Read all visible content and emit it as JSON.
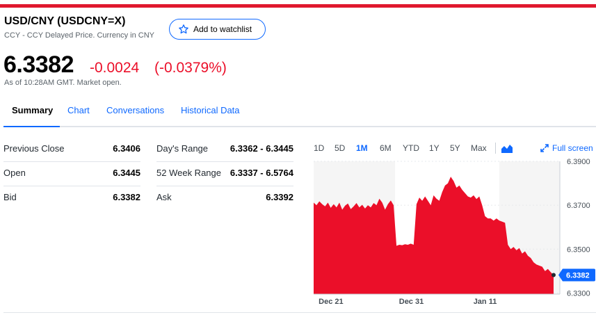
{
  "header": {
    "title": "USD/CNY (USDCNY=X)",
    "subtitle": "CCY - CCY Delayed Price. Currency in CNY",
    "watchlist_label": "Add to watchlist"
  },
  "quote": {
    "price": "6.3382",
    "change": "-0.0024",
    "change_pct": "(-0.0379%)",
    "as_of": "As of 10:28AM GMT. Market open."
  },
  "tabs": [
    {
      "label": "Summary",
      "active": true
    },
    {
      "label": "Chart"
    },
    {
      "label": "Conversations"
    },
    {
      "label": "Historical Data"
    }
  ],
  "stats_left": [
    {
      "label": "Previous Close",
      "value": "6.3406"
    },
    {
      "label": "Open",
      "value": "6.3445"
    },
    {
      "label": "Bid",
      "value": "6.3382"
    }
  ],
  "stats_right": [
    {
      "label": "Day's Range",
      "value": "6.3362 - 6.3445"
    },
    {
      "label": "52 Week Range",
      "value": "6.3337 - 6.5764"
    },
    {
      "label": "Ask",
      "value": "6.3392"
    }
  ],
  "range_buttons": [
    "1D",
    "5D",
    "1M",
    "6M",
    "YTD",
    "1Y",
    "5Y",
    "Max"
  ],
  "active_range": "1M",
  "full_screen_label": "Full screen",
  "colors": {
    "accent": "#0f69ff",
    "negative": "#eb0f29",
    "chart_fill": "#eb0f29"
  },
  "chart_data": {
    "type": "area",
    "y_ticks": [
      "6.3900",
      "6.3700",
      "6.3500",
      "6.3300"
    ],
    "ylim": [
      6.3295,
      6.39
    ],
    "x_labels": [
      "Dec 21",
      "Dec 31",
      "Jan 11"
    ],
    "current_label": "6.3382",
    "current_value": 6.3382,
    "shaded_session": true,
    "values": [
      6.3712,
      6.37,
      6.3718,
      6.3705,
      6.3695,
      6.3712,
      6.3688,
      6.3705,
      6.369,
      6.3712,
      6.368,
      6.3698,
      6.3708,
      6.3682,
      6.3695,
      6.371,
      6.369,
      6.3702,
      6.3685,
      6.37,
      6.369,
      6.371,
      6.37,
      6.373,
      6.3712,
      6.368,
      6.3705,
      6.3722,
      6.37,
      6.3515,
      6.352,
      6.3518,
      6.3522,
      6.352,
      6.3525,
      6.352,
      6.3705,
      6.3735,
      6.372,
      6.374,
      6.372,
      6.37,
      6.3745,
      6.373,
      6.372,
      6.376,
      6.379,
      6.38,
      6.383,
      6.381,
      6.378,
      6.379,
      6.377,
      6.3755,
      6.374,
      6.3735,
      6.3745,
      6.3728,
      6.374,
      6.37,
      6.365,
      6.364,
      6.364,
      6.363,
      6.364,
      6.363,
      6.3625,
      6.362,
      6.352,
      6.35,
      6.351,
      6.3495,
      6.3505,
      6.348,
      6.349,
      6.347,
      6.346,
      6.344,
      6.343,
      6.3425,
      6.342,
      6.34,
      6.341,
      6.3395,
      6.3382
    ]
  }
}
